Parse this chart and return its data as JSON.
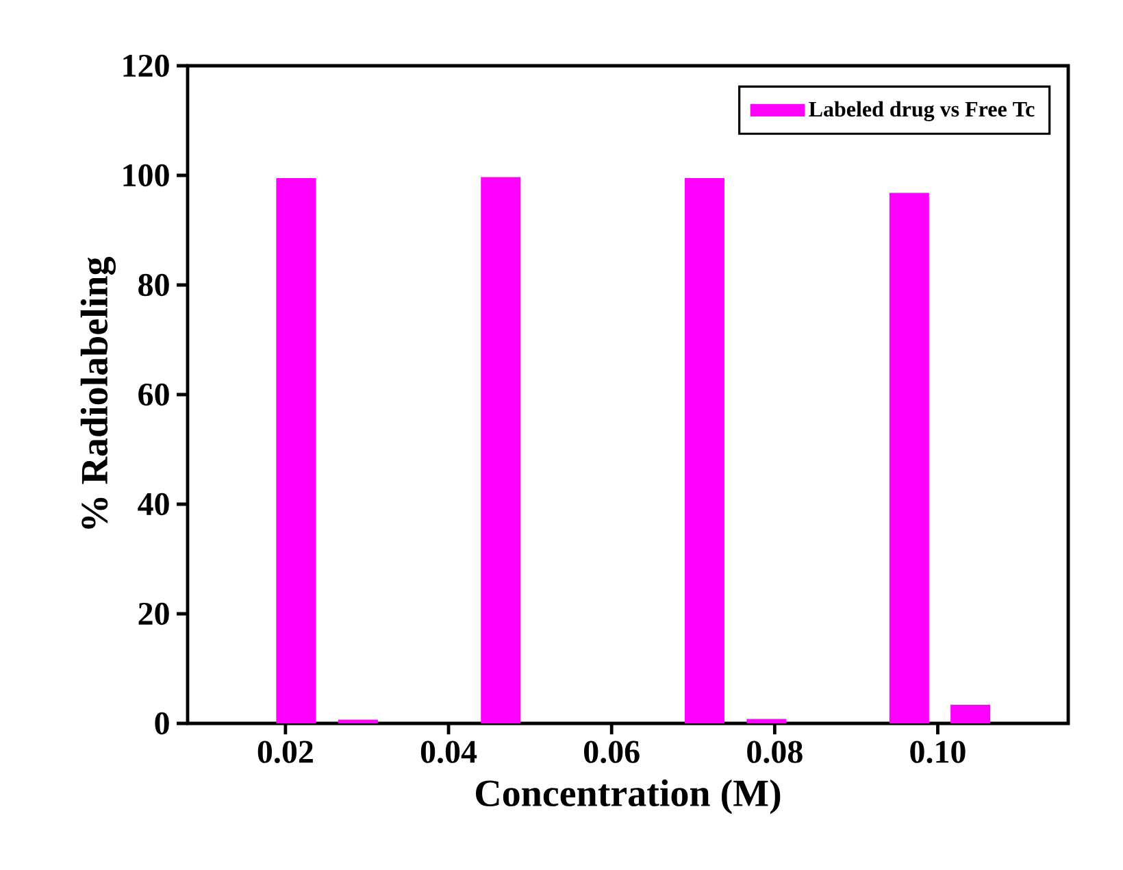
{
  "chart_data": {
    "type": "bar",
    "xlabel": "Concentration (M)",
    "ylabel": "% Radiolabeling",
    "xlim": [
      0.008,
      0.116
    ],
    "xticks": [
      {
        "value": 0.02,
        "label": "0.02"
      },
      {
        "value": 0.04,
        "label": "0.04"
      },
      {
        "value": 0.06,
        "label": "0.06"
      },
      {
        "value": 0.08,
        "label": "0.08"
      },
      {
        "value": 0.1,
        "label": "0.10"
      }
    ],
    "ylim": [
      0,
      120
    ],
    "yticks": [
      0,
      20,
      40,
      60,
      80,
      100,
      120
    ],
    "legend": "top right",
    "series": [
      {
        "name": "Labeled drug vs Free Tc",
        "color": "#ff00ff",
        "x": [
          0.0213,
          0.0464,
          0.0714,
          0.0965
        ],
        "values": [
          99.5,
          99.7,
          99.5,
          96.8
        ]
      },
      {
        "color": "#ff00ff",
        "x": [
          0.0289,
          0.0541,
          0.079,
          0.104
        ],
        "values": [
          0.7,
          null,
          0.8,
          3.4
        ]
      }
    ]
  }
}
